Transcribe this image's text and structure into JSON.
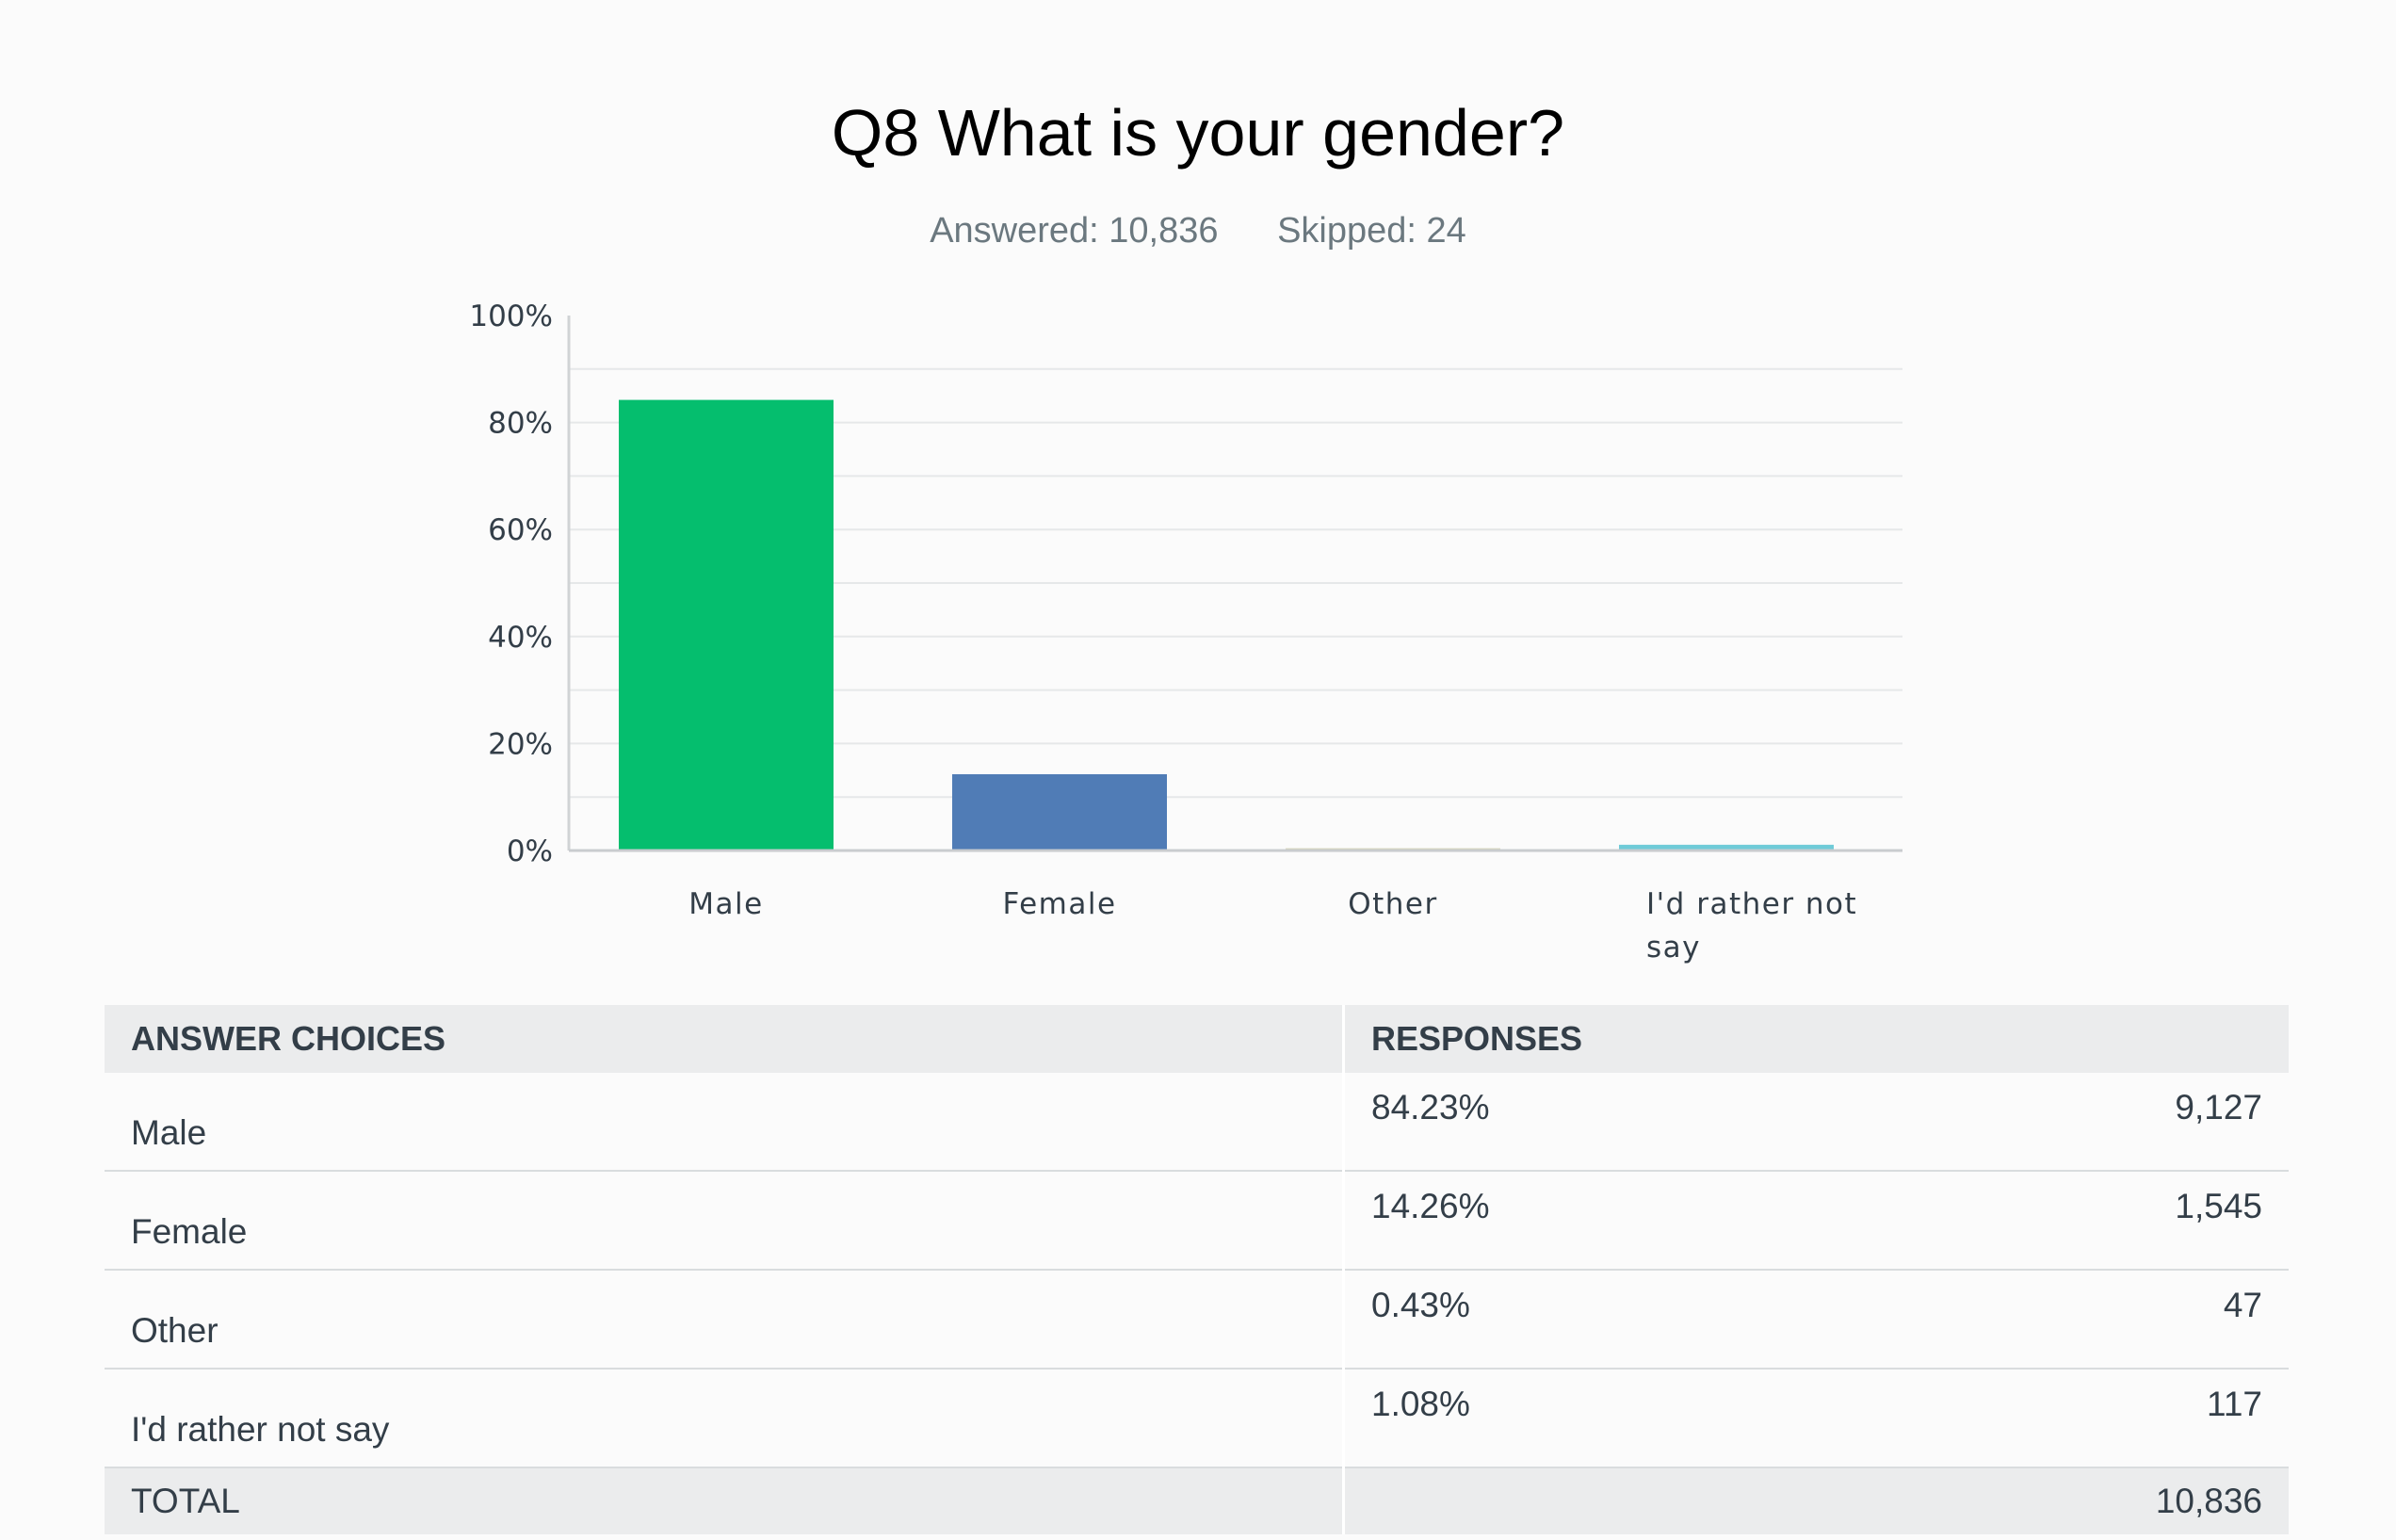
{
  "question": {
    "title": "Q8 What is your gender?",
    "answered": "Answered: 10,836",
    "skipped": "Skipped: 24"
  },
  "chart_data": {
    "type": "bar",
    "categories": [
      "Male",
      "Female",
      "Other",
      "I'd rather not say"
    ],
    "values": [
      84.23,
      14.26,
      0.43,
      1.08
    ],
    "colors": [
      "#05be6e",
      "#507cb6",
      "#d6d6b8",
      "#6fcbd8"
    ],
    "ylim": [
      0,
      100
    ],
    "yticks": [
      "0%",
      "20%",
      "40%",
      "60%",
      "80%",
      "100%"
    ],
    "grid": true
  },
  "table": {
    "headers": [
      "ANSWER CHOICES",
      "RESPONSES"
    ],
    "rows": [
      {
        "choice": "Male",
        "percent": "84.23%",
        "count": "9,127"
      },
      {
        "choice": "Female",
        "percent": "14.26%",
        "count": "1,545"
      },
      {
        "choice": "Other",
        "percent": "0.43%",
        "count": "47"
      },
      {
        "choice": "I'd rather not say",
        "percent": "1.08%",
        "count": "117"
      }
    ],
    "total_label": "TOTAL",
    "total_count": "10,836"
  }
}
